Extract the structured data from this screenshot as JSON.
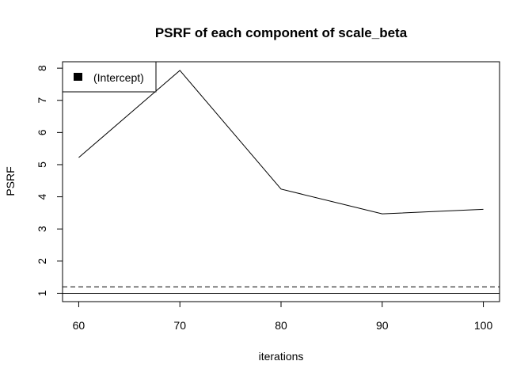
{
  "chart_data": {
    "type": "line",
    "title": "PSRF of each component of scale_beta",
    "xlabel": "iterations",
    "ylabel": "PSRF",
    "x": [
      60,
      70,
      80,
      90,
      100
    ],
    "series": [
      {
        "name": "(Intercept)",
        "values": [
          5.22,
          7.93,
          4.24,
          3.47,
          3.61
        ]
      }
    ],
    "xlim": [
      58.4,
      101.6
    ],
    "ylim": [
      0.74,
      8.2
    ],
    "xticks": [
      60,
      70,
      80,
      90,
      100
    ],
    "yticks": [
      1,
      2,
      3,
      4,
      5,
      6,
      7,
      8
    ],
    "reference_lines": [
      {
        "y": 1.0,
        "style": "solid"
      },
      {
        "y": 1.2,
        "style": "dashed"
      }
    ],
    "legend_position": "top-left"
  }
}
